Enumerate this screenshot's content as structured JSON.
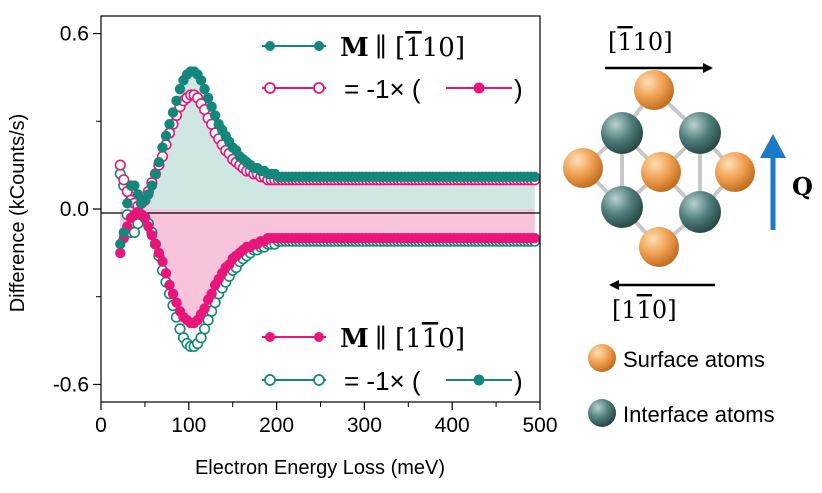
{
  "chart_data": {
    "type": "scatter",
    "xlabel": "Electron Energy Loss (meV)",
    "ylabel": "Difference (kCounts/s)",
    "xlim": [
      0,
      500
    ],
    "ylim": [
      -0.66,
      0.66
    ],
    "x_ticks": [
      0,
      100,
      200,
      300,
      400,
      500
    ],
    "x_tick_labels": [
      "0",
      "100",
      "200",
      "300",
      "400",
      "500"
    ],
    "y_ticks": [
      0.6,
      0.0,
      -0.6
    ],
    "y_tick_labels": [
      "0.6",
      "0.0",
      "-0.6"
    ],
    "x_start": 22,
    "x_step": 4,
    "series": [
      {
        "name": "M ∥ [-110]",
        "color": "#13877c",
        "marker": "filled",
        "fill": "#cfe6e3",
        "values": [
          -0.12,
          -0.08,
          0.02,
          0.08,
          0.08,
          0.05,
          0.02,
          0.03,
          0.05,
          0.08,
          0.12,
          0.16,
          0.21,
          0.25,
          0.29,
          0.33,
          0.37,
          0.41,
          0.44,
          0.46,
          0.47,
          0.47,
          0.46,
          0.44,
          0.41,
          0.38,
          0.35,
          0.32,
          0.29,
          0.27,
          0.25,
          0.23,
          0.21,
          0.2,
          0.18,
          0.17,
          0.16,
          0.15,
          0.14,
          0.14,
          0.13,
          0.13,
          0.12,
          0.12,
          0.12,
          0.11,
          0.11,
          0.11,
          0.11,
          0.11,
          0.11,
          0.11,
          0.11,
          0.11,
          0.11,
          0.11,
          0.11,
          0.11,
          0.11,
          0.11,
          0.11,
          0.11,
          0.11,
          0.11,
          0.11,
          0.11,
          0.11,
          0.11,
          0.11,
          0.11,
          0.11,
          0.11,
          0.11,
          0.11,
          0.11,
          0.11,
          0.11,
          0.11,
          0.11,
          0.11,
          0.11,
          0.11,
          0.11,
          0.11,
          0.11,
          0.11,
          0.11,
          0.11,
          0.11,
          0.11,
          0.11,
          0.11,
          0.11,
          0.11,
          0.11,
          0.11,
          0.11,
          0.11,
          0.11,
          0.11,
          0.11,
          0.11,
          0.11,
          0.11,
          0.11,
          0.11,
          0.11,
          0.11,
          0.11,
          0.11,
          0.11,
          0.11,
          0.11,
          0.11,
          0.11,
          0.11,
          0.11,
          0.11,
          0.11
        ]
      },
      {
        "name": "= -1× (M ∥ [1-10])",
        "color": "#e8157a",
        "marker": "open",
        "values": [
          0.15,
          0.1,
          0.06,
          0.03,
          0.02,
          0.01,
          0.02,
          0.03,
          0.06,
          0.09,
          0.12,
          0.15,
          0.18,
          0.22,
          0.26,
          0.29,
          0.32,
          0.35,
          0.37,
          0.38,
          0.39,
          0.39,
          0.38,
          0.36,
          0.34,
          0.31,
          0.29,
          0.26,
          0.24,
          0.22,
          0.2,
          0.19,
          0.17,
          0.16,
          0.15,
          0.14,
          0.13,
          0.13,
          0.12,
          0.12,
          0.11,
          0.11,
          0.1,
          0.1,
          0.1,
          0.1,
          0.1,
          0.1,
          0.1,
          0.1,
          0.1,
          0.1,
          0.1,
          0.1,
          0.1,
          0.1,
          0.1,
          0.1,
          0.1,
          0.1,
          0.1,
          0.1,
          0.1,
          0.1,
          0.1,
          0.1,
          0.1,
          0.1,
          0.1,
          0.1,
          0.1,
          0.1,
          0.1,
          0.1,
          0.1,
          0.1,
          0.1,
          0.1,
          0.1,
          0.1,
          0.1,
          0.1,
          0.1,
          0.1,
          0.1,
          0.1,
          0.1,
          0.1,
          0.1,
          0.1,
          0.1,
          0.1,
          0.1,
          0.1,
          0.1,
          0.1,
          0.1,
          0.1,
          0.1,
          0.1,
          0.1,
          0.1,
          0.1,
          0.1,
          0.1,
          0.1,
          0.1,
          0.1,
          0.1,
          0.1,
          0.1,
          0.1,
          0.1,
          0.1,
          0.1,
          0.1,
          0.1,
          0.1,
          0.1
        ]
      },
      {
        "name": "M ∥ [1-10]",
        "color": "#e8157a",
        "marker": "filled",
        "fill": "#f8c4dc",
        "values": [
          -0.15,
          -0.1,
          -0.06,
          -0.03,
          -0.02,
          -0.01,
          -0.02,
          -0.03,
          -0.06,
          -0.09,
          -0.12,
          -0.15,
          -0.18,
          -0.22,
          -0.26,
          -0.29,
          -0.32,
          -0.35,
          -0.37,
          -0.38,
          -0.39,
          -0.39,
          -0.38,
          -0.36,
          -0.34,
          -0.31,
          -0.29,
          -0.26,
          -0.24,
          -0.22,
          -0.2,
          -0.19,
          -0.17,
          -0.16,
          -0.15,
          -0.14,
          -0.13,
          -0.13,
          -0.12,
          -0.12,
          -0.11,
          -0.11,
          -0.1,
          -0.1,
          -0.1,
          -0.1,
          -0.1,
          -0.1,
          -0.1,
          -0.1,
          -0.1,
          -0.1,
          -0.1,
          -0.1,
          -0.1,
          -0.1,
          -0.1,
          -0.1,
          -0.1,
          -0.1,
          -0.1,
          -0.1,
          -0.1,
          -0.1,
          -0.1,
          -0.1,
          -0.1,
          -0.1,
          -0.1,
          -0.1,
          -0.1,
          -0.1,
          -0.1,
          -0.1,
          -0.1,
          -0.1,
          -0.1,
          -0.1,
          -0.1,
          -0.1,
          -0.1,
          -0.1,
          -0.1,
          -0.1,
          -0.1,
          -0.1,
          -0.1,
          -0.1,
          -0.1,
          -0.1,
          -0.1,
          -0.1,
          -0.1,
          -0.1,
          -0.1,
          -0.1,
          -0.1,
          -0.1,
          -0.1,
          -0.1,
          -0.1,
          -0.1,
          -0.1,
          -0.1,
          -0.1,
          -0.1,
          -0.1,
          -0.1,
          -0.1,
          -0.1,
          -0.1,
          -0.1,
          -0.1,
          -0.1,
          -0.1,
          -0.1,
          -0.1,
          -0.1,
          -0.1
        ]
      },
      {
        "name": "= -1× (M ∥ [-110])",
        "color": "#13877c",
        "marker": "open",
        "values": [
          0.12,
          0.08,
          -0.02,
          -0.08,
          -0.08,
          -0.05,
          -0.02,
          -0.03,
          -0.05,
          -0.08,
          -0.12,
          -0.16,
          -0.21,
          -0.25,
          -0.29,
          -0.33,
          -0.37,
          -0.41,
          -0.44,
          -0.46,
          -0.47,
          -0.47,
          -0.46,
          -0.44,
          -0.41,
          -0.38,
          -0.35,
          -0.32,
          -0.29,
          -0.27,
          -0.25,
          -0.23,
          -0.21,
          -0.2,
          -0.18,
          -0.17,
          -0.16,
          -0.15,
          -0.14,
          -0.14,
          -0.13,
          -0.13,
          -0.12,
          -0.12,
          -0.12,
          -0.11,
          -0.11,
          -0.11,
          -0.11,
          -0.11,
          -0.11,
          -0.11,
          -0.11,
          -0.11,
          -0.11,
          -0.11,
          -0.11,
          -0.11,
          -0.11,
          -0.11,
          -0.11,
          -0.11,
          -0.11,
          -0.11,
          -0.11,
          -0.11,
          -0.11,
          -0.11,
          -0.11,
          -0.11,
          -0.11,
          -0.11,
          -0.11,
          -0.11,
          -0.11,
          -0.11,
          -0.11,
          -0.11,
          -0.11,
          -0.11,
          -0.11,
          -0.11,
          -0.11,
          -0.11,
          -0.11,
          -0.11,
          -0.11,
          -0.11,
          -0.11,
          -0.11,
          -0.11,
          -0.11,
          -0.11,
          -0.11,
          -0.11,
          -0.11,
          -0.11,
          -0.11,
          -0.11,
          -0.11,
          -0.11,
          -0.11,
          -0.11,
          -0.11,
          -0.11,
          -0.11,
          -0.11,
          -0.11,
          -0.11,
          -0.11,
          -0.11,
          -0.11,
          -0.11,
          -0.11,
          -0.11,
          -0.11,
          -0.11,
          -0.11,
          -0.11
        ]
      }
    ],
    "legend_top": {
      "row1_bold": "M",
      "row1_dir": "∥ [",
      "row1_bar": "1",
      "row1_rest": "10]",
      "row2_text": "= -1× ("
    },
    "legend_bottom": {
      "row1_bold": "M",
      "row1_dir": "∥ [1",
      "row1_bar": "1",
      "row1_rest": "0]",
      "row2_text": "= -1× ("
    }
  },
  "schematic": {
    "top_dir": {
      "open": "[",
      "bar": "1",
      "rest": "10]"
    },
    "bottom_dir": {
      "open": "[1",
      "bar": "1",
      "rest": "0]"
    },
    "q_label": "Q",
    "surface_color": "#f0a050",
    "interface_color": "#4f7e7c",
    "arrow_color": "#1a7ac8",
    "legend": [
      {
        "label": "Surface atoms",
        "color": "#f0a050"
      },
      {
        "label": "Interface atoms",
        "color": "#4f7e7c"
      }
    ]
  }
}
